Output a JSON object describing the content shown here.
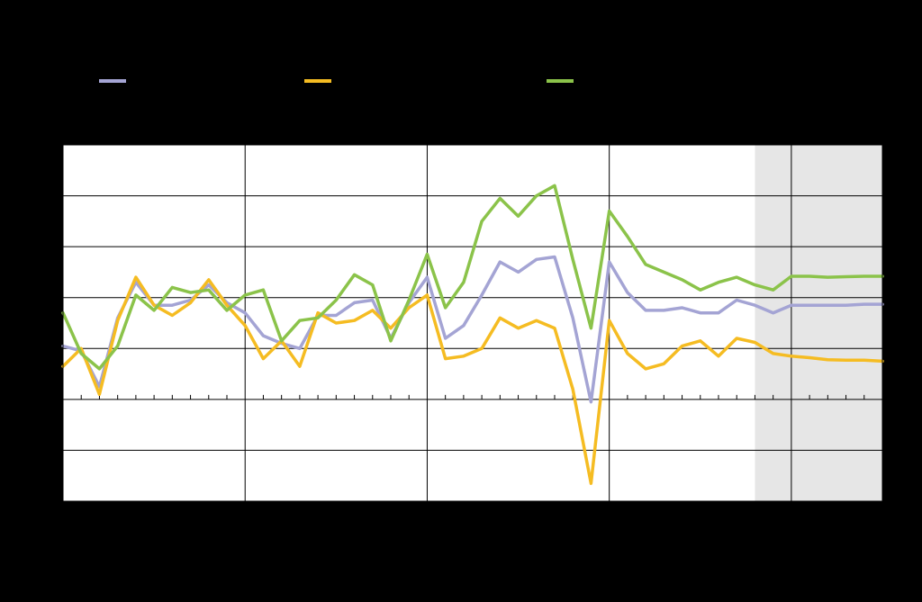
{
  "chart_data": {
    "type": "line",
    "title": "",
    "xlabel": "",
    "ylabel": "",
    "ylim": [
      -2,
      5
    ],
    "xlim": [
      0,
      45
    ],
    "grid": true,
    "legend_position": "top",
    "forecast_shading": {
      "from_x": 38,
      "to_x": 45,
      "color": "#e6e6e6"
    },
    "series": [
      {
        "color": "#a4a4d4",
        "x": [
          0,
          1,
          2,
          3,
          4,
          5,
          6,
          7,
          8,
          9,
          10,
          11,
          12,
          13,
          14,
          15,
          16,
          17,
          18,
          19,
          20,
          21,
          22,
          23,
          24,
          25,
          26,
          27,
          28,
          29,
          30,
          31,
          32,
          33,
          34,
          35,
          36,
          37,
          38,
          39,
          40,
          41,
          42,
          43,
          44,
          45
        ],
        "values": [
          1.05,
          0.95,
          0.25,
          1.6,
          2.3,
          1.85,
          1.85,
          1.95,
          2.25,
          1.9,
          1.7,
          1.25,
          1.1,
          1.0,
          1.65,
          1.65,
          1.9,
          1.95,
          1.2,
          1.9,
          2.4,
          1.2,
          1.45,
          2.05,
          2.7,
          2.5,
          2.75,
          2.8,
          1.6,
          -0.05,
          2.7,
          2.1,
          1.75,
          1.75,
          1.8,
          1.7,
          1.7,
          1.95,
          1.85,
          1.7,
          1.85,
          1.85,
          1.85,
          1.85,
          1.87,
          1.87
        ]
      },
      {
        "color": "#f5bc22",
        "x": [
          0,
          1,
          2,
          3,
          4,
          5,
          6,
          7,
          8,
          9,
          10,
          11,
          12,
          13,
          14,
          15,
          16,
          17,
          18,
          19,
          20,
          21,
          22,
          23,
          24,
          25,
          26,
          27,
          28,
          29,
          30,
          31,
          32,
          33,
          34,
          35,
          36,
          37,
          38,
          39,
          40,
          41,
          42,
          43,
          44,
          45
        ],
        "values": [
          0.65,
          1.0,
          0.1,
          1.55,
          2.4,
          1.85,
          1.65,
          1.9,
          2.35,
          1.85,
          1.45,
          0.8,
          1.15,
          0.65,
          1.7,
          1.5,
          1.55,
          1.75,
          1.4,
          1.8,
          2.05,
          0.8,
          0.85,
          1.0,
          1.6,
          1.4,
          1.55,
          1.4,
          0.2,
          -1.65,
          1.55,
          0.9,
          0.6,
          0.7,
          1.05,
          1.15,
          0.85,
          1.2,
          1.12,
          0.9,
          0.85,
          0.82,
          0.78,
          0.77,
          0.77,
          0.75
        ]
      },
      {
        "color": "#8bc34a",
        "x": [
          0,
          1,
          2,
          3,
          4,
          5,
          6,
          7,
          8,
          9,
          10,
          11,
          12,
          13,
          14,
          15,
          16,
          17,
          18,
          19,
          20,
          21,
          22,
          23,
          24,
          25,
          26,
          27,
          28,
          29,
          30,
          31,
          32,
          33,
          34,
          35,
          36,
          37,
          38,
          39,
          40,
          41,
          42,
          43,
          44,
          45
        ],
        "values": [
          1.7,
          0.9,
          0.6,
          1.05,
          2.05,
          1.75,
          2.2,
          2.1,
          2.15,
          1.75,
          2.05,
          2.15,
          1.15,
          1.55,
          1.6,
          1.95,
          2.45,
          2.25,
          1.15,
          1.95,
          2.85,
          1.8,
          2.3,
          3.5,
          3.95,
          3.6,
          4.0,
          4.2,
          2.75,
          1.4,
          3.7,
          3.2,
          2.65,
          2.5,
          2.35,
          2.15,
          2.3,
          2.4,
          2.25,
          2.15,
          2.42,
          2.42,
          2.4,
          2.41,
          2.42,
          2.42
        ]
      }
    ]
  }
}
